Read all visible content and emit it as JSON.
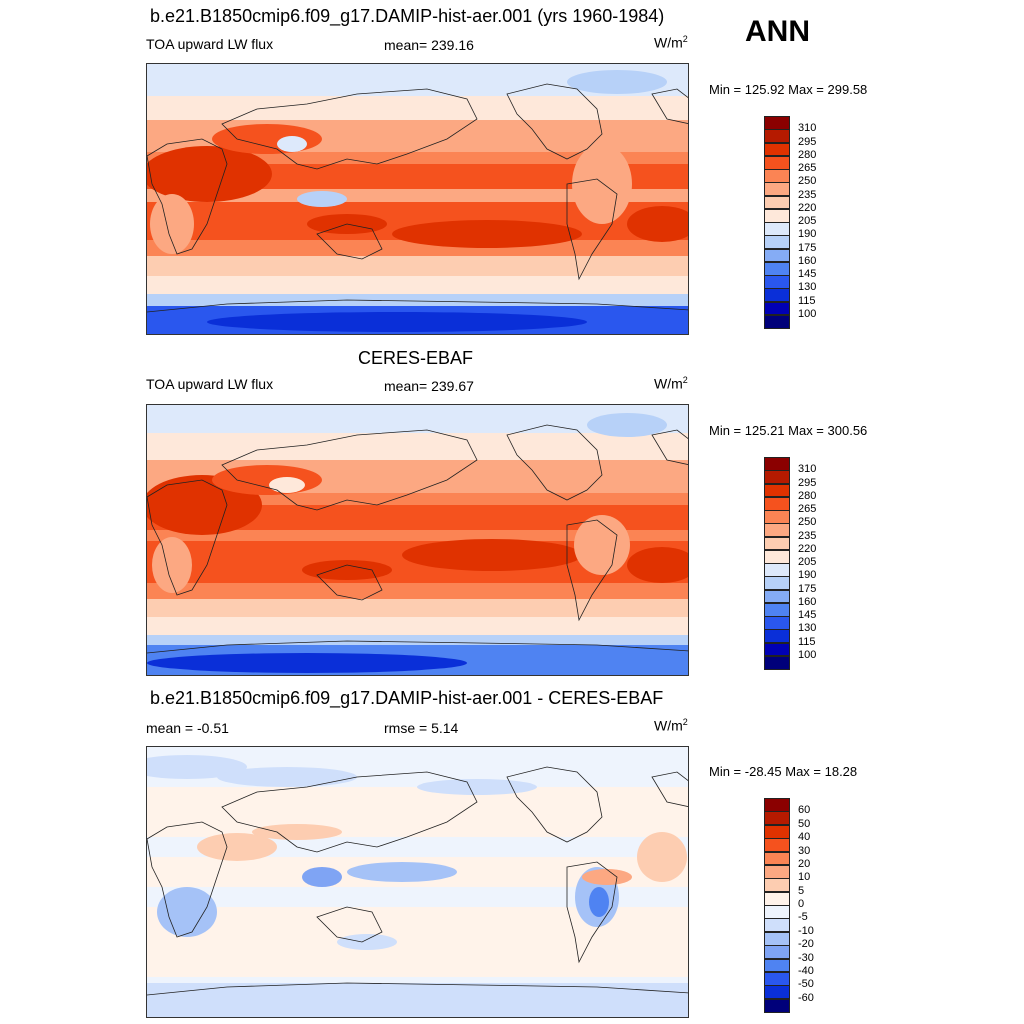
{
  "season": "ANN",
  "panels": [
    {
      "title": "b.e21.B1850cmip6.f09_g17.DAMIP-hist-aer.001 (yrs 1960-1984)",
      "left_text": "TOA upward LW flux",
      "center_text": "mean= 239.16",
      "units_base": "W/m",
      "units_exp": "2",
      "minmax": "Min = 125.92 Max = 299.58",
      "kind": "abs",
      "cbar_labels": [
        "310",
        "295",
        "280",
        "265",
        "250",
        "235",
        "220",
        "205",
        "190",
        "175",
        "160",
        "145",
        "130",
        "115",
        "100"
      ]
    },
    {
      "title": "CERES-EBAF",
      "left_text": "TOA upward LW flux",
      "center_text": "mean= 239.67",
      "units_base": "W/m",
      "units_exp": "2",
      "minmax": "Min = 125.21 Max = 300.56",
      "kind": "abs",
      "cbar_labels": [
        "310",
        "295",
        "280",
        "265",
        "250",
        "235",
        "220",
        "205",
        "190",
        "175",
        "160",
        "145",
        "130",
        "115",
        "100"
      ]
    },
    {
      "title": "b.e21.B1850cmip6.f09_g17.DAMIP-hist-aer.001 - CERES-EBAF",
      "left_text": "mean =  -0.51",
      "center_text": "rmse =   5.14",
      "units_base": "W/m",
      "units_exp": "2",
      "minmax": "Min = -28.45 Max =  18.28",
      "kind": "diff",
      "cbar_labels": [
        "60",
        "50",
        "40",
        "30",
        "20",
        "10",
        "5",
        "0",
        "-5",
        "-10",
        "-20",
        "-30",
        "-40",
        "-50",
        "-60"
      ]
    }
  ],
  "colors": {
    "abs_scale": [
      "#8b0000",
      "#b51a00",
      "#e03200",
      "#f5521e",
      "#fb8454",
      "#fca882",
      "#fdcdb1",
      "#fee8da",
      "#dde9fb",
      "#b7d1f8",
      "#85acf5",
      "#4f83f2",
      "#2a57ee",
      "#0a2fd8",
      "#0000b5",
      "#00007a"
    ],
    "diff_scale": [
      "#8b0000",
      "#b51a00",
      "#e03200",
      "#f5521e",
      "#fb8454",
      "#fca882",
      "#fdcdb1",
      "#fff3ea",
      "#eef4fd",
      "#cfdffb",
      "#a5c2f7",
      "#7fa4f4",
      "#4f83f2",
      "#2a57ee",
      "#0a2fd8",
      "#00007a"
    ]
  }
}
